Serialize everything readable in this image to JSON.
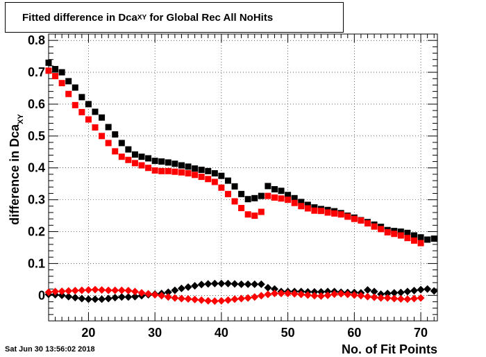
{
  "footer": {
    "date": "Sat Jun 30 13:56:02 2018"
  },
  "chart_data": {
    "type": "scatter",
    "title": {
      "prefix": "Fitted difference in Dca",
      "subscript": "XY",
      "suffix": " for Global Rec All NoHits"
    },
    "xlabel": "No. of Fit Points",
    "ylabel": "difference in Dca",
    "ylabel_sub": "XY",
    "xlim": [
      14,
      72.5
    ],
    "ylim": [
      -0.08,
      0.82
    ],
    "xticks": [
      20,
      30,
      40,
      50,
      60,
      70
    ],
    "yticks": [
      0,
      0.1,
      0.2,
      0.3,
      0.4,
      0.5,
      0.6,
      0.7,
      0.8
    ],
    "ytick_labels": [
      "0",
      "0.1",
      "0.2",
      "0.3",
      "0.4",
      "0.5",
      "0.6",
      "0.7",
      "0.8"
    ],
    "grid": true,
    "series": [
      {
        "marker": "square",
        "color": "#000000",
        "x": [
          14,
          15,
          16,
          17,
          18,
          19,
          20,
          21,
          22,
          23,
          24,
          25,
          26,
          27,
          28,
          29,
          30,
          31,
          32,
          33,
          34,
          35,
          36,
          37,
          38,
          39,
          40,
          41,
          42,
          43,
          44,
          45,
          46,
          47,
          48,
          49,
          50,
          51,
          52,
          53,
          54,
          55,
          56,
          57,
          58,
          59,
          60,
          61,
          62,
          63,
          64,
          65,
          66,
          67,
          68,
          69,
          70,
          71,
          72
        ],
        "y": [
          0.73,
          0.71,
          0.7,
          0.672,
          0.652,
          0.622,
          0.6,
          0.576,
          0.558,
          0.528,
          0.505,
          0.478,
          0.458,
          0.442,
          0.435,
          0.43,
          0.422,
          0.42,
          0.417,
          0.413,
          0.408,
          0.404,
          0.398,
          0.394,
          0.39,
          0.383,
          0.375,
          0.36,
          0.342,
          0.318,
          0.302,
          0.305,
          0.312,
          0.343,
          0.333,
          0.328,
          0.315,
          0.305,
          0.293,
          0.284,
          0.276,
          0.271,
          0.268,
          0.264,
          0.258,
          0.25,
          0.244,
          0.236,
          0.23,
          0.222,
          0.215,
          0.205,
          0.202,
          0.2,
          0.196,
          0.188,
          0.182,
          0.175,
          0.178
        ]
      },
      {
        "marker": "square",
        "color": "#ff0000",
        "x": [
          14,
          15,
          16,
          17,
          18,
          19,
          20,
          21,
          22,
          23,
          24,
          25,
          26,
          27,
          28,
          29,
          30,
          31,
          32,
          33,
          34,
          35,
          36,
          37,
          38,
          39,
          40,
          41,
          42,
          43,
          44,
          45,
          46,
          47,
          48,
          49,
          50,
          51,
          52,
          53,
          54,
          55,
          56,
          57,
          58,
          59,
          60,
          61,
          62,
          63,
          64,
          65,
          66,
          67,
          68,
          69,
          70
        ],
        "y": [
          0.705,
          0.688,
          0.666,
          0.632,
          0.597,
          0.575,
          0.552,
          0.527,
          0.5,
          0.478,
          0.452,
          0.435,
          0.425,
          0.415,
          0.408,
          0.4,
          0.392,
          0.39,
          0.39,
          0.388,
          0.386,
          0.383,
          0.378,
          0.372,
          0.365,
          0.356,
          0.338,
          0.318,
          0.295,
          0.274,
          0.254,
          0.25,
          0.262,
          0.312,
          0.307,
          0.304,
          0.3,
          0.29,
          0.28,
          0.273,
          0.266,
          0.265,
          0.26,
          0.257,
          0.254,
          0.247,
          0.24,
          0.235,
          0.226,
          0.216,
          0.208,
          0.198,
          0.193,
          0.188,
          0.18,
          0.172,
          0.164
        ]
      },
      {
        "marker": "diamond",
        "color": "#000000",
        "x": [
          14,
          15,
          16,
          17,
          18,
          19,
          20,
          21,
          22,
          23,
          24,
          25,
          26,
          27,
          28,
          29,
          30,
          31,
          32,
          33,
          34,
          35,
          36,
          37,
          38,
          39,
          40,
          41,
          42,
          43,
          44,
          45,
          46,
          47,
          48,
          49,
          50,
          51,
          52,
          53,
          54,
          55,
          56,
          57,
          58,
          59,
          60,
          61,
          62,
          63,
          64,
          65,
          66,
          67,
          68,
          69,
          70,
          71,
          72
        ],
        "y": [
          0.003,
          0.002,
          0.0,
          -0.004,
          -0.007,
          -0.01,
          -0.012,
          -0.012,
          -0.012,
          -0.01,
          -0.007,
          -0.005,
          -0.005,
          -0.004,
          -0.001,
          0.002,
          0.004,
          0.006,
          0.01,
          0.016,
          0.022,
          0.026,
          0.03,
          0.034,
          0.036,
          0.037,
          0.037,
          0.037,
          0.036,
          0.035,
          0.035,
          0.035,
          0.035,
          0.024,
          0.02,
          0.012,
          0.012,
          0.012,
          0.012,
          0.011,
          0.011,
          0.011,
          0.012,
          0.012,
          0.01,
          0.009,
          0.009,
          0.008,
          0.017,
          0.012,
          0.004,
          0.006,
          0.008,
          0.009,
          0.012,
          0.015,
          0.018,
          0.02,
          0.014
        ]
      },
      {
        "marker": "diamond",
        "color": "#ff0000",
        "x": [
          14,
          15,
          16,
          17,
          18,
          19,
          20,
          21,
          22,
          23,
          24,
          25,
          26,
          27,
          28,
          29,
          30,
          31,
          32,
          33,
          34,
          35,
          36,
          37,
          38,
          39,
          40,
          41,
          42,
          43,
          44,
          45,
          46,
          47,
          48,
          49,
          50,
          51,
          52,
          53,
          54,
          55,
          56,
          57,
          58,
          59,
          60,
          61,
          62,
          63,
          64,
          65,
          66,
          67,
          68,
          69,
          70
        ],
        "y": [
          0.01,
          0.012,
          0.013,
          0.014,
          0.015,
          0.016,
          0.017,
          0.018,
          0.017,
          0.016,
          0.016,
          0.016,
          0.015,
          0.012,
          0.008,
          0.005,
          0.002,
          -0.001,
          -0.005,
          -0.008,
          -0.01,
          -0.011,
          -0.013,
          -0.015,
          -0.017,
          -0.018,
          -0.017,
          -0.015,
          -0.012,
          -0.01,
          -0.008,
          -0.005,
          -0.001,
          0.003,
          0.006,
          0.006,
          0.006,
          0.005,
          0.003,
          0.001,
          -0.001,
          -0.002,
          0.0,
          0.004,
          0.005,
          0.003,
          0.001,
          -0.001,
          -0.004,
          -0.006,
          -0.008,
          -0.008,
          -0.01,
          -0.011,
          -0.012,
          -0.01,
          -0.008
        ]
      }
    ]
  }
}
